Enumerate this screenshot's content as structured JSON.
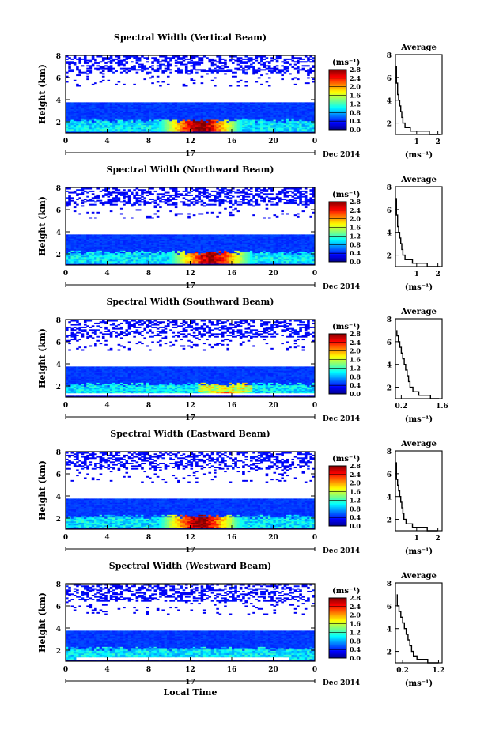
{
  "figure": {
    "xlabel": "Local Time",
    "date_label": "Dec 2014",
    "day_label": "17",
    "cb_unit": "(ms⁻¹)",
    "avg_title": "Average",
    "avg_xlabel": "(ms⁻¹)",
    "ylabel": "Height (km)"
  },
  "chart_data": [
    {
      "type": "heatmap",
      "title": "Spectral Width (Vertical Beam)",
      "xlim": [
        0,
        24
      ],
      "ylim": [
        1,
        8
      ],
      "x_ticks": [
        "0",
        "4",
        "8",
        "12",
        "16",
        "20",
        "0"
      ],
      "y_ticks": [
        "2",
        "4",
        "6",
        "8"
      ],
      "colorbar": {
        "range": [
          0,
          2.8
        ],
        "ticks": [
          "0.0",
          "0.4",
          "0.8",
          "1.2",
          "1.6",
          "2.0",
          "2.4",
          "2.8"
        ]
      },
      "average": {
        "xlim": [
          0,
          2.2
        ],
        "x_ticks": [
          "1",
          "2"
        ],
        "y_ticks": [
          "2",
          "4",
          "6",
          "8"
        ],
        "height_km": [
          1.0,
          1.3,
          1.6,
          2.0,
          2.5,
          3.0,
          3.5,
          4.0,
          4.5,
          5.0,
          5.5,
          6.0,
          6.5,
          7.0
        ],
        "value": [
          2.1,
          1.6,
          0.7,
          0.45,
          0.35,
          0.3,
          0.25,
          0.2,
          0.15,
          0.1,
          0.1,
          0.05,
          0.05,
          0.05
        ]
      }
    },
    {
      "type": "heatmap",
      "title": "Spectral Width (Northward Beam)",
      "xlim": [
        0,
        24
      ],
      "ylim": [
        1,
        8
      ],
      "x_ticks": [
        "0",
        "4",
        "8",
        "12",
        "16",
        "20",
        "0"
      ],
      "y_ticks": [
        "2",
        "4",
        "6",
        "8"
      ],
      "colorbar": {
        "range": [
          0,
          2.8
        ],
        "ticks": [
          "0.0",
          "0.4",
          "0.8",
          "1.2",
          "1.6",
          "2.0",
          "2.4",
          "2.8"
        ]
      },
      "average": {
        "xlim": [
          0,
          2.2
        ],
        "x_ticks": [
          "1",
          "2"
        ],
        "y_ticks": [
          "2",
          "4",
          "6",
          "8"
        ],
        "height_km": [
          1.0,
          1.3,
          1.6,
          2.0,
          2.5,
          3.0,
          3.5,
          4.0,
          4.5,
          5.0,
          5.5,
          6.0,
          6.5,
          7.0
        ],
        "value": [
          2.1,
          1.5,
          0.8,
          0.45,
          0.35,
          0.3,
          0.25,
          0.2,
          0.15,
          0.1,
          0.1,
          0.05,
          0.05,
          0.05
        ]
      }
    },
    {
      "type": "heatmap",
      "title": "Spectral Width (Southward Beam)",
      "xlim": [
        0,
        24
      ],
      "ylim": [
        1,
        8
      ],
      "x_ticks": [
        "0",
        "4",
        "8",
        "12",
        "16",
        "20",
        "0"
      ],
      "y_ticks": [
        "2",
        "4",
        "6",
        "8"
      ],
      "colorbar": {
        "range": [
          0,
          2.8
        ],
        "ticks": [
          "0.0",
          "0.4",
          "0.8",
          "1.2",
          "1.6",
          "2.0",
          "2.4",
          "2.8"
        ]
      },
      "average": {
        "xlim": [
          0,
          1.6
        ],
        "x_ticks": [
          "0.2",
          "1.6"
        ],
        "y_ticks": [
          "2",
          "4",
          "6",
          "8"
        ],
        "height_km": [
          1.0,
          1.3,
          1.6,
          2.0,
          2.5,
          3.0,
          3.5,
          4.0,
          4.5,
          5.0,
          5.5,
          6.0,
          6.5,
          7.0
        ],
        "value": [
          1.5,
          1.2,
          0.8,
          0.6,
          0.5,
          0.45,
          0.4,
          0.35,
          0.3,
          0.25,
          0.2,
          0.15,
          0.1,
          0.05
        ]
      }
    },
    {
      "type": "heatmap",
      "title": "Spectral Width (Eastward Beam)",
      "xlim": [
        0,
        24
      ],
      "ylim": [
        1,
        8
      ],
      "x_ticks": [
        "0",
        "4",
        "8",
        "12",
        "16",
        "20",
        "0"
      ],
      "y_ticks": [
        "2",
        "4",
        "6",
        "8"
      ],
      "colorbar": {
        "range": [
          0,
          2.8
        ],
        "ticks": [
          "0.0",
          "0.4",
          "0.8",
          "1.2",
          "1.6",
          "2.0",
          "2.4",
          "2.8"
        ]
      },
      "average": {
        "xlim": [
          0,
          2.2
        ],
        "x_ticks": [
          "1",
          "2"
        ],
        "y_ticks": [
          "2",
          "4",
          "6",
          "8"
        ],
        "height_km": [
          1.0,
          1.3,
          1.6,
          2.0,
          2.5,
          3.0,
          3.5,
          4.0,
          4.5,
          5.0,
          5.5,
          6.0,
          6.5,
          7.0
        ],
        "value": [
          2.0,
          1.5,
          0.8,
          0.5,
          0.4,
          0.35,
          0.3,
          0.25,
          0.2,
          0.15,
          0.1,
          0.05,
          0.05,
          0.05
        ]
      }
    },
    {
      "type": "heatmap",
      "title": "Spectral Width (Westward Beam)",
      "xlim": [
        0,
        24
      ],
      "ylim": [
        1,
        8
      ],
      "x_ticks": [
        "0",
        "4",
        "8",
        "12",
        "16",
        "20",
        "0"
      ],
      "y_ticks": [
        "2",
        "4",
        "6",
        "8"
      ],
      "colorbar": {
        "range": [
          0,
          2.8
        ],
        "ticks": [
          "0.0",
          "0.4",
          "0.8",
          "1.2",
          "1.6",
          "2.0",
          "2.4",
          "2.8"
        ]
      },
      "average": {
        "xlim": [
          0,
          1.3
        ],
        "x_ticks": [
          "0.2",
          "1.2"
        ],
        "y_ticks": [
          "2",
          "4",
          "6",
          "8"
        ],
        "height_km": [
          1.0,
          1.3,
          1.6,
          2.0,
          2.5,
          3.0,
          3.5,
          4.0,
          4.5,
          5.0,
          5.5,
          6.0,
          6.5,
          7.0
        ],
        "value": [
          1.2,
          0.9,
          0.6,
          0.5,
          0.45,
          0.4,
          0.35,
          0.3,
          0.25,
          0.2,
          0.15,
          0.1,
          0.05,
          0.05
        ]
      }
    }
  ]
}
